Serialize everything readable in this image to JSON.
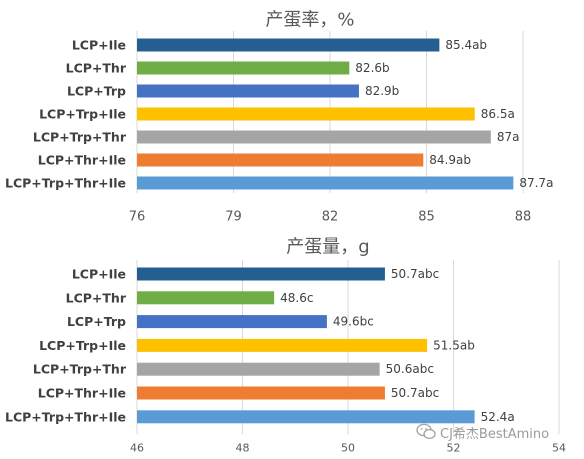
{
  "chart_data": [
    {
      "type": "bar",
      "orientation": "horizontal",
      "title": "产蛋率，%",
      "categories": [
        "LCP+Ile",
        "LCP+Thr",
        "LCP+Trp",
        "LCP+Trp+Ile",
        "LCP+Trp+Thr",
        "LCP+Thr+Ile",
        "LCP+Trp+Thr+Ile"
      ],
      "values": [
        85.4,
        82.6,
        82.9,
        86.5,
        87,
        84.9,
        87.7
      ],
      "labels": [
        "85.4ab",
        "82.6b",
        "82.9b",
        "86.5a",
        "87a",
        "84.9ab",
        "87.7a"
      ],
      "colors": [
        "#255E91",
        "#70AD47",
        "#4472C4",
        "#FFC000",
        "#A5A5A5",
        "#ED7D31",
        "#5B9BD5"
      ],
      "xlim": [
        76,
        88
      ],
      "xticks": [
        76,
        79,
        82,
        85,
        88
      ],
      "grid": true
    },
    {
      "type": "bar",
      "orientation": "horizontal",
      "title": "产蛋量，g",
      "categories": [
        "LCP+Ile",
        "LCP+Thr",
        "LCP+Trp",
        "LCP+Trp+Ile",
        "LCP+Trp+Thr",
        "LCP+Thr+Ile",
        "LCP+Trp+Thr+Ile"
      ],
      "values": [
        50.7,
        48.6,
        49.6,
        51.5,
        50.6,
        50.7,
        52.4
      ],
      "labels": [
        "50.7abc",
        "48.6c",
        "49.6bc",
        "51.5ab",
        "50.6abc",
        "50.7abc",
        "52.4a"
      ],
      "colors": [
        "#255E91",
        "#70AD47",
        "#4472C4",
        "#FFC000",
        "#A5A5A5",
        "#ED7D31",
        "#5B9BD5"
      ],
      "xlim": [
        46,
        54
      ],
      "xticks": [
        46,
        48,
        50,
        52,
        54
      ],
      "grid": true
    }
  ],
  "watermark": {
    "text": "CJ希杰BestAmino",
    "icon": "wechat-logo-icon"
  }
}
